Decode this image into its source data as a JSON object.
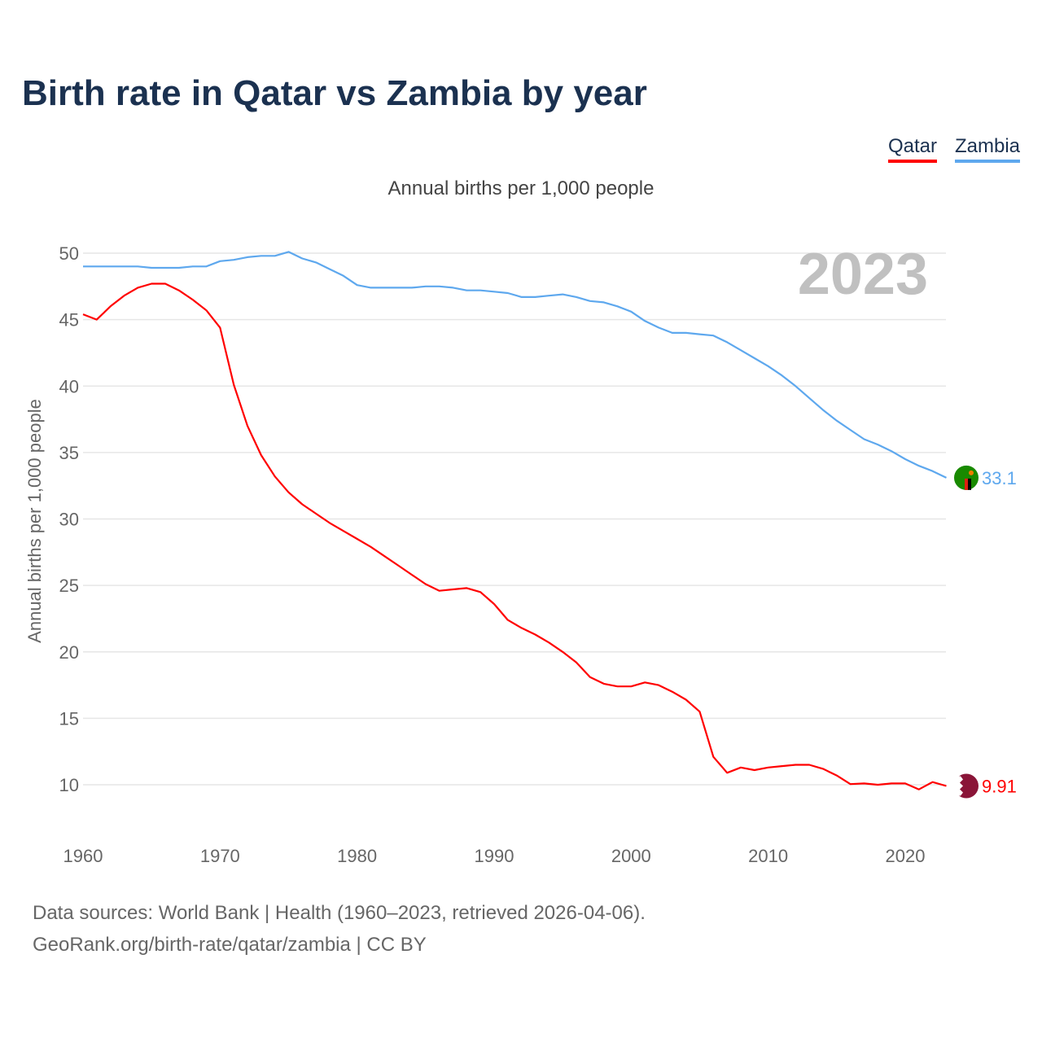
{
  "title": "Birth rate in Qatar vs Zambia by year",
  "source_line1": "Data sources: World Bank | Health (1960–2023, retrieved 2026-04-06).",
  "source_line2": "GeoRank.org/birth-rate/qatar/zambia | CC BY",
  "chart_data": {
    "type": "line",
    "title": "Birth rate in Qatar vs Zambia by year",
    "subtitle": "Annual births per 1,000 people",
    "ylabel": "Annual births per 1,000 people",
    "xlabel": "",
    "year_label": "2023",
    "ylim": [
      7,
      51
    ],
    "xlim": [
      1960,
      2023
    ],
    "yticks": [
      10,
      15,
      20,
      25,
      30,
      35,
      40,
      45,
      50
    ],
    "xticks": [
      1960,
      1970,
      1980,
      1990,
      2000,
      2010,
      2020
    ],
    "grid": true,
    "legend_position": "top-right",
    "x_start": 1960,
    "series": [
      {
        "name": "Qatar",
        "color": "#ff0000",
        "end_label": "9.91",
        "flag": "qatar-flag",
        "values": [
          45.4,
          45.0,
          46.0,
          46.8,
          47.4,
          47.7,
          47.7,
          47.2,
          46.5,
          45.7,
          44.4,
          40.1,
          37.0,
          34.8,
          33.2,
          32.0,
          31.1,
          30.4,
          29.7,
          29.1,
          28.5,
          27.9,
          27.2,
          26.5,
          25.8,
          25.1,
          24.6,
          24.7,
          24.8,
          24.5,
          23.6,
          22.4,
          21.8,
          21.3,
          20.7,
          20.0,
          19.2,
          18.1,
          17.6,
          17.4,
          17.4,
          17.7,
          17.5,
          17.0,
          16.4,
          15.5,
          12.1,
          10.9,
          11.3,
          11.1,
          11.3,
          11.4,
          11.5,
          11.5,
          11.2,
          10.7,
          10.05,
          10.1,
          10.0,
          10.1,
          10.1,
          9.65,
          10.2,
          9.91
        ]
      },
      {
        "name": "Zambia",
        "color": "#5ea8ee",
        "end_label": "33.1",
        "flag": "zambia-flag",
        "values": [
          49.0,
          49.0,
          49.0,
          49.0,
          49.0,
          48.9,
          48.9,
          48.9,
          49.0,
          49.0,
          49.4,
          49.5,
          49.7,
          49.8,
          49.8,
          50.1,
          49.6,
          49.3,
          48.8,
          48.3,
          47.6,
          47.4,
          47.4,
          47.4,
          47.4,
          47.5,
          47.5,
          47.4,
          47.2,
          47.2,
          47.1,
          47.0,
          46.7,
          46.7,
          46.8,
          46.9,
          46.7,
          46.4,
          46.3,
          46.0,
          45.6,
          44.9,
          44.4,
          44.0,
          44.0,
          43.9,
          43.8,
          43.3,
          42.7,
          42.1,
          41.5,
          40.8,
          40.0,
          39.1,
          38.2,
          37.4,
          36.7,
          36.0,
          35.6,
          35.1,
          34.5,
          34.0,
          33.6,
          33.1
        ]
      }
    ]
  }
}
